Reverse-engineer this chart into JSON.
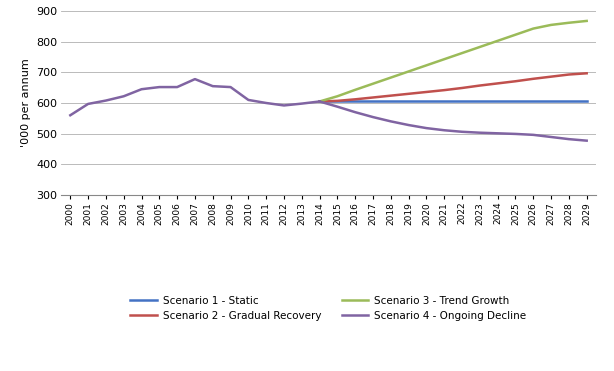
{
  "ylabel": "'000 per annum",
  "ylim": [
    300,
    900
  ],
  "yticks": [
    300,
    400,
    500,
    600,
    700,
    800,
    900
  ],
  "years_historical": [
    2000,
    2001,
    2002,
    2003,
    2004,
    2005,
    2006,
    2007,
    2008,
    2009,
    2010,
    2011,
    2012,
    2013,
    2014
  ],
  "years_projection": [
    2014,
    2015,
    2016,
    2017,
    2018,
    2019,
    2020,
    2021,
    2022,
    2023,
    2024,
    2025,
    2026,
    2027,
    2028,
    2029
  ],
  "historical_values": [
    560,
    597,
    608,
    622,
    645,
    652,
    652,
    678,
    655,
    652,
    610,
    600,
    592,
    598,
    605
  ],
  "scenario1_values": [
    605,
    605,
    605,
    605,
    605,
    605,
    605,
    605,
    605,
    605,
    605,
    605,
    605,
    605,
    605,
    605
  ],
  "scenario2_values": [
    605,
    607,
    612,
    618,
    624,
    630,
    636,
    642,
    649,
    657,
    664,
    671,
    679,
    686,
    693,
    697
  ],
  "scenario3_values": [
    605,
    622,
    643,
    663,
    683,
    703,
    723,
    743,
    763,
    783,
    803,
    823,
    843,
    855,
    862,
    868
  ],
  "scenario4_values": [
    605,
    588,
    570,
    554,
    540,
    528,
    518,
    511,
    506,
    503,
    501,
    499,
    496,
    489,
    482,
    477
  ],
  "color_s1": "#4472C4",
  "color_s2": "#C0504D",
  "color_s3": "#9BBB59",
  "color_s4": "#8064A2",
  "color_historical": "#8064A2",
  "background_color": "#FFFFFF",
  "grid_color": "#B0B0B0",
  "legend_labels": [
    "Scenario 1 - Static",
    "Scenario 2 - Gradual Recovery",
    "Scenario 3 - Trend Growth",
    "Scenario 4 - Ongoing Decline"
  ]
}
